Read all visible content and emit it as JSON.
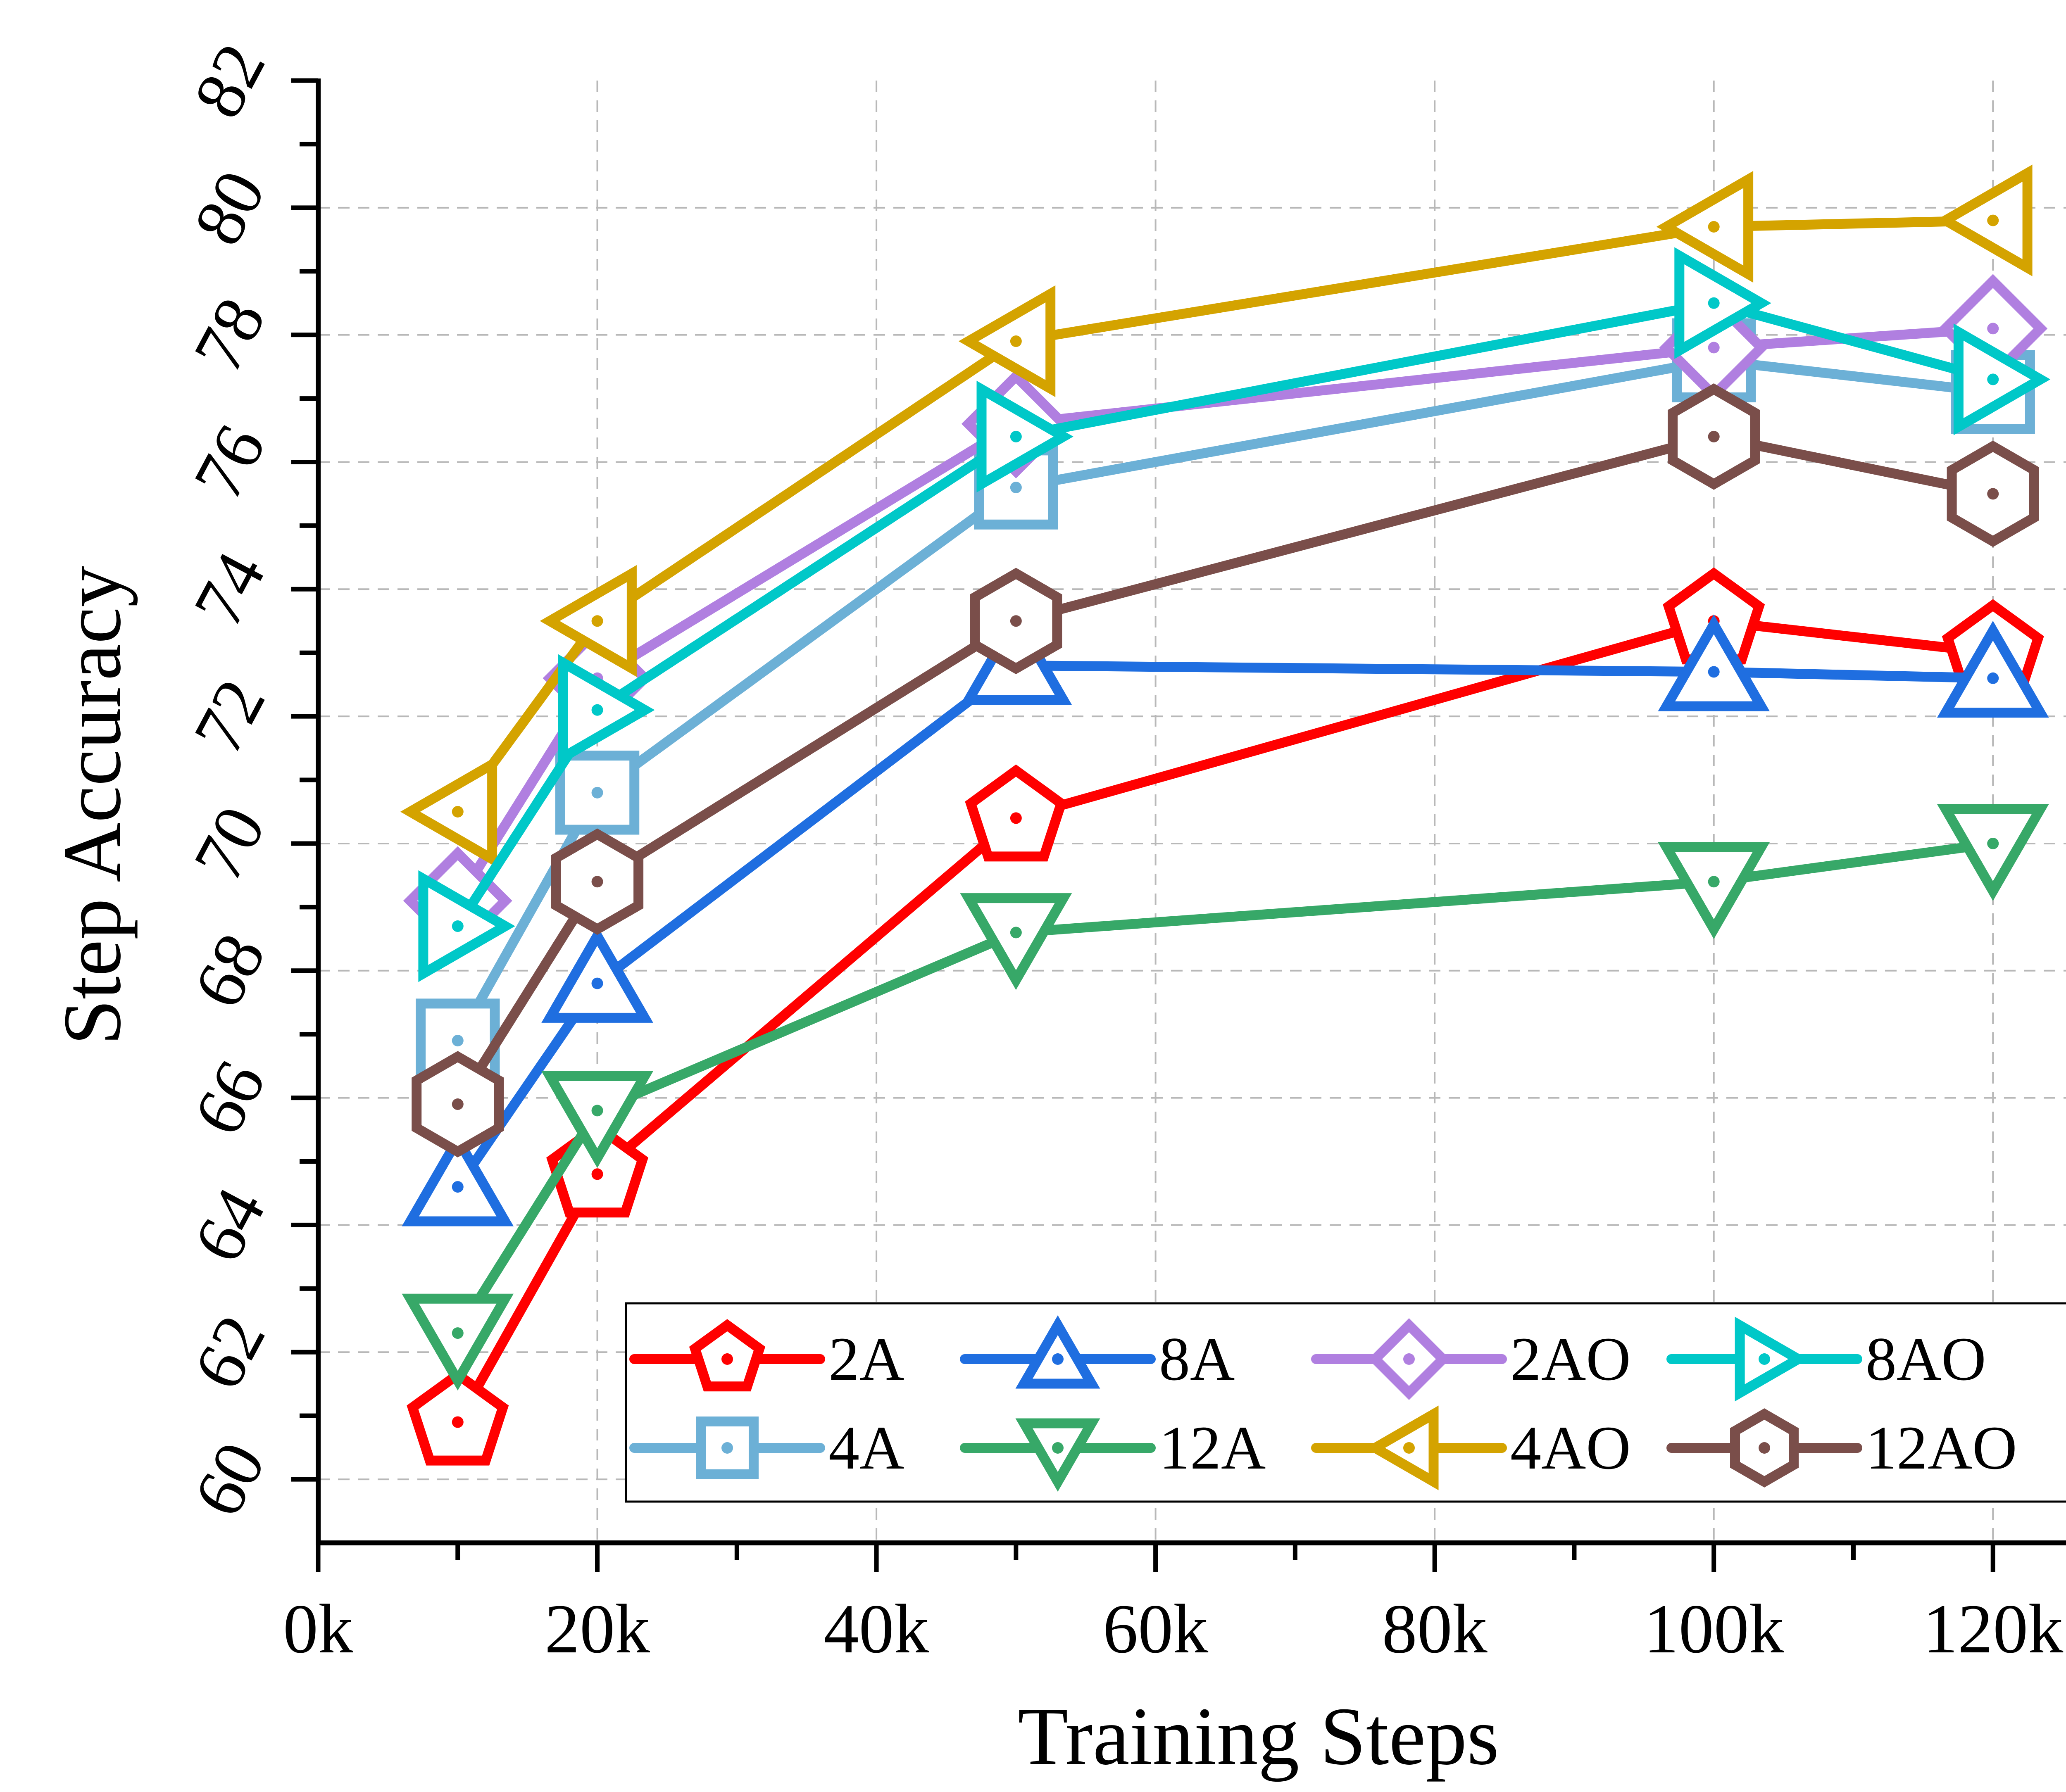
{
  "chart_data": {
    "type": "line",
    "title": "",
    "xlabel": "Training Steps",
    "ylabel": "Step Accuracy",
    "xlim": [
      0,
      130000
    ],
    "ylim": [
      59,
      82
    ],
    "x_ticks": [
      0,
      20000,
      40000,
      60000,
      80000,
      100000,
      120000
    ],
    "x_tick_labels": [
      "0k",
      "20k",
      "40k",
      "60k",
      "80k",
      "100k",
      "120k"
    ],
    "y_ticks": [
      60,
      62,
      64,
      66,
      68,
      70,
      72,
      74,
      76,
      78,
      80,
      82
    ],
    "y_tick_labels": [
      "60",
      "62",
      "64",
      "66",
      "68",
      "70",
      "72",
      "74",
      "76",
      "78",
      "80",
      "82"
    ],
    "grid": true,
    "legend_position": "bottom-right",
    "x": [
      10000,
      20000,
      50000,
      100000,
      120000
    ],
    "series": [
      {
        "name": "2A",
        "color": "#ff0000",
        "marker": "pentagon",
        "values": [
          60.9,
          64.8,
          70.4,
          73.5,
          73.0
        ]
      },
      {
        "name": "4A",
        "color": "#6cb0d6",
        "marker": "square",
        "values": [
          66.9,
          70.8,
          75.6,
          77.6,
          77.1
        ]
      },
      {
        "name": "8A",
        "color": "#1f6ee0",
        "marker": "triangle-up",
        "values": [
          64.6,
          67.8,
          72.8,
          72.7,
          72.6
        ]
      },
      {
        "name": "12A",
        "color": "#37a868",
        "marker": "triangle-down",
        "values": [
          62.3,
          65.8,
          68.6,
          69.4,
          70.0
        ]
      },
      {
        "name": "2AO",
        "color": "#b07fe0",
        "marker": "diamond",
        "values": [
          69.1,
          72.6,
          76.6,
          77.8,
          78.1
        ]
      },
      {
        "name": "4AO",
        "color": "#d4a300",
        "marker": "triangle-left",
        "values": [
          70.5,
          73.5,
          77.9,
          79.7,
          79.8
        ]
      },
      {
        "name": "8AO",
        "color": "#00c8c8",
        "marker": "triangle-right",
        "values": [
          68.7,
          72.1,
          76.4,
          78.5,
          77.3
        ]
      },
      {
        "name": "12AO",
        "color": "#7a4e4a",
        "marker": "hexagon",
        "values": [
          65.9,
          69.4,
          73.5,
          76.4,
          75.5
        ]
      }
    ]
  }
}
